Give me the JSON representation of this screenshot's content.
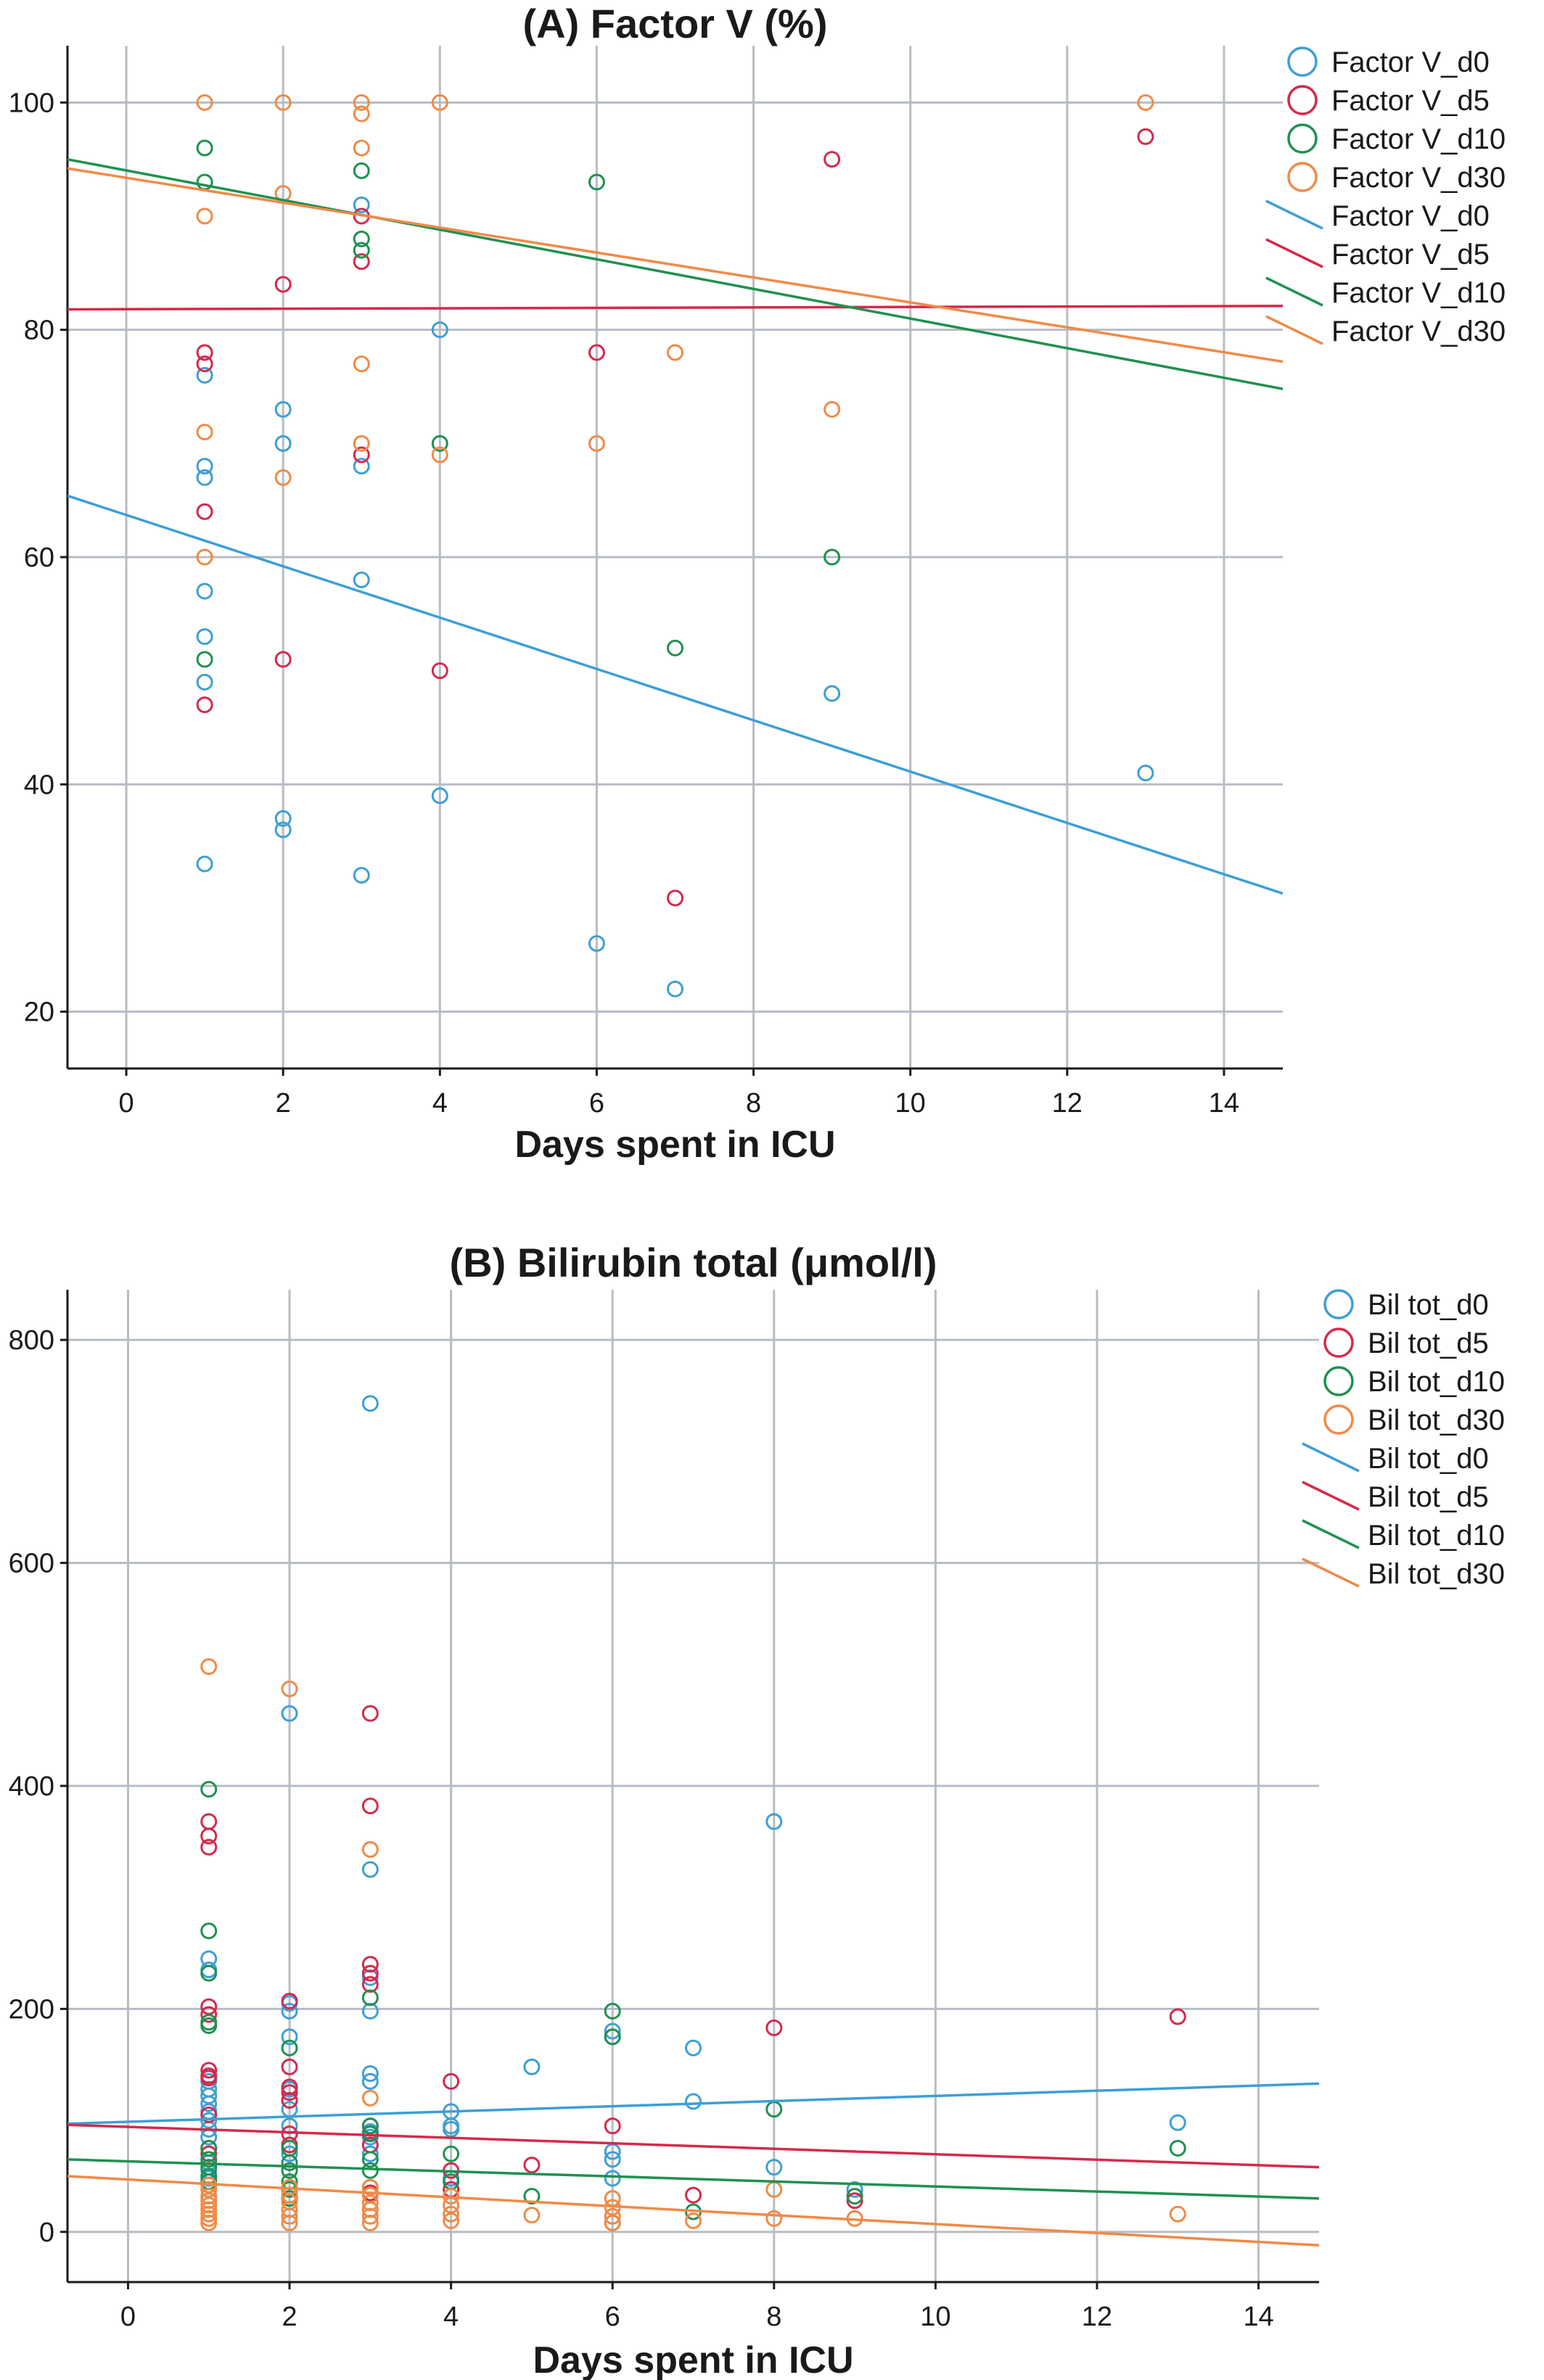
{
  "colors": {
    "d0": "#3d9fd6",
    "d5": "#d5294c",
    "d10": "#1f9150",
    "d30": "#f08a47"
  },
  "chart_data": [
    {
      "type": "scatter",
      "title": "(A) Factor V (%)",
      "xlabel": "Days spent in ICU",
      "ylabel": "",
      "xlim": [
        -0.75,
        14.75
      ],
      "ylim": [
        15,
        105
      ],
      "xticks": [
        0,
        2,
        4,
        6,
        8,
        10,
        12,
        14
      ],
      "yticks": [
        20,
        40,
        60,
        80,
        100
      ],
      "grid": true,
      "legend_position": "top-right",
      "series": [
        {
          "name": "Factor V_d0",
          "key": "d0",
          "points": [
            [
              1,
              76
            ],
            [
              1,
              68
            ],
            [
              1,
              67
            ],
            [
              1,
              57
            ],
            [
              1,
              53
            ],
            [
              1,
              49
            ],
            [
              1,
              33
            ],
            [
              2,
              73
            ],
            [
              2,
              70
            ],
            [
              2,
              37
            ],
            [
              2,
              36
            ],
            [
              3,
              91
            ],
            [
              3,
              68
            ],
            [
              3,
              58
            ],
            [
              3,
              32
            ],
            [
              4,
              80
            ],
            [
              4,
              39
            ],
            [
              6,
              26
            ],
            [
              7,
              22
            ],
            [
              9,
              48
            ],
            [
              13,
              41
            ]
          ],
          "fit": [
            [
              -0.75,
              65.4
            ],
            [
              14.75,
              30.4
            ]
          ]
        },
        {
          "name": "Factor V_d5",
          "key": "d5",
          "points": [
            [
              1,
              78
            ],
            [
              1,
              77
            ],
            [
              1,
              64
            ],
            [
              1,
              47
            ],
            [
              2,
              84
            ],
            [
              2,
              51
            ],
            [
              3,
              90
            ],
            [
              3,
              86
            ],
            [
              3,
              69
            ],
            [
              4,
              50
            ],
            [
              6,
              78
            ],
            [
              7,
              30
            ],
            [
              9,
              95
            ],
            [
              13,
              97
            ]
          ],
          "fit": [
            [
              -0.75,
              81.8
            ],
            [
              14.75,
              82.1
            ]
          ]
        },
        {
          "name": "Factor V_d10",
          "key": "d10",
          "points": [
            [
              1,
              96
            ],
            [
              1,
              93
            ],
            [
              1,
              51
            ],
            [
              3,
              94
            ],
            [
              3,
              88
            ],
            [
              3,
              87
            ],
            [
              4,
              70
            ],
            [
              6,
              93
            ],
            [
              7,
              52
            ],
            [
              9,
              60
            ]
          ],
          "fit": [
            [
              -0.75,
              95.0
            ],
            [
              14.75,
              74.8
            ]
          ]
        },
        {
          "name": "Factor V_d30",
          "key": "d30",
          "points": [
            [
              1,
              100
            ],
            [
              1,
              90
            ],
            [
              1,
              71
            ],
            [
              1,
              60
            ],
            [
              2,
              100
            ],
            [
              2,
              92
            ],
            [
              2,
              67
            ],
            [
              3,
              100
            ],
            [
              3,
              99
            ],
            [
              3,
              96
            ],
            [
              3,
              77
            ],
            [
              3,
              70
            ],
            [
              4,
              100
            ],
            [
              4,
              69
            ],
            [
              6,
              70
            ],
            [
              7,
              78
            ],
            [
              9,
              73
            ],
            [
              13,
              100
            ]
          ],
          "fit": [
            [
              -0.75,
              94.2
            ],
            [
              14.75,
              77.2
            ]
          ]
        }
      ]
    },
    {
      "type": "scatter",
      "title": "(B) Bilirubin total (μmol/l)",
      "xlabel": "Days spent in ICU",
      "ylabel": "",
      "xlim": [
        -0.75,
        14.75
      ],
      "ylim": [
        -45,
        845
      ],
      "xticks": [
        0,
        2,
        4,
        6,
        8,
        10,
        12,
        14
      ],
      "yticks": [
        0,
        200,
        400,
        600,
        800
      ],
      "grid": true,
      "legend_position": "top-right",
      "series": [
        {
          "name": "Bil tot_d0",
          "key": "d0",
          "points": [
            [
              1,
              245
            ],
            [
              1,
              235
            ],
            [
              1,
              135
            ],
            [
              1,
              128
            ],
            [
              1,
              122
            ],
            [
              1,
              115
            ],
            [
              1,
              108
            ],
            [
              1,
              100
            ],
            [
              1,
              92
            ],
            [
              1,
              85
            ],
            [
              1,
              62
            ],
            [
              1,
              55
            ],
            [
              1,
              48
            ],
            [
              2,
              465
            ],
            [
              2,
              205
            ],
            [
              2,
              198
            ],
            [
              2,
              175
            ],
            [
              2,
              128
            ],
            [
              2,
              118
            ],
            [
              2,
              110
            ],
            [
              2,
              95
            ],
            [
              2,
              70
            ],
            [
              3,
              743
            ],
            [
              3,
              325
            ],
            [
              3,
              228
            ],
            [
              3,
              198
            ],
            [
              3,
              142
            ],
            [
              3,
              135
            ],
            [
              3,
              90
            ],
            [
              3,
              85
            ],
            [
              3,
              70
            ],
            [
              4,
              108
            ],
            [
              4,
              95
            ],
            [
              4,
              92
            ],
            [
              4,
              48
            ],
            [
              5,
              148
            ],
            [
              6,
              180
            ],
            [
              6,
              175
            ],
            [
              6,
              72
            ],
            [
              6,
              65
            ],
            [
              6,
              48
            ],
            [
              7,
              165
            ],
            [
              7,
              117
            ],
            [
              8,
              368
            ],
            [
              8,
              58
            ],
            [
              9,
              38
            ],
            [
              13,
              98
            ]
          ],
          "fit": [
            [
              -0.75,
              97
            ],
            [
              14.75,
              133
            ]
          ]
        },
        {
          "name": "Bil tot_d5",
          "key": "d5",
          "points": [
            [
              1,
              368
            ],
            [
              1,
              355
            ],
            [
              1,
              345
            ],
            [
              1,
              202
            ],
            [
              1,
              195
            ],
            [
              1,
              145
            ],
            [
              1,
              140
            ],
            [
              1,
              138
            ],
            [
              1,
              105
            ],
            [
              1,
              75
            ],
            [
              1,
              70
            ],
            [
              2,
              207
            ],
            [
              2,
              148
            ],
            [
              2,
              130
            ],
            [
              2,
              125
            ],
            [
              2,
              118
            ],
            [
              2,
              88
            ],
            [
              2,
              78
            ],
            [
              3,
              465
            ],
            [
              3,
              382
            ],
            [
              3,
              240
            ],
            [
              3,
              232
            ],
            [
              3,
              222
            ],
            [
              3,
              95
            ],
            [
              3,
              88
            ],
            [
              3,
              78
            ],
            [
              3,
              35
            ],
            [
              4,
              135
            ],
            [
              4,
              55
            ],
            [
              4,
              38
            ],
            [
              5,
              60
            ],
            [
              6,
              95
            ],
            [
              7,
              33
            ],
            [
              8,
              183
            ],
            [
              9,
              28
            ],
            [
              13,
              193
            ]
          ],
          "fit": [
            [
              -0.75,
              96
            ],
            [
              14.75,
              58
            ]
          ]
        },
        {
          "name": "Bil tot_d10",
          "key": "d10",
          "points": [
            [
              1,
              397
            ],
            [
              1,
              270
            ],
            [
              1,
              232
            ],
            [
              1,
              188
            ],
            [
              1,
              185
            ],
            [
              1,
              75
            ],
            [
              1,
              65
            ],
            [
              1,
              58
            ],
            [
              1,
              50
            ],
            [
              1,
              45
            ],
            [
              2,
              165
            ],
            [
              2,
              75
            ],
            [
              2,
              62
            ],
            [
              2,
              55
            ],
            [
              2,
              45
            ],
            [
              2,
              38
            ],
            [
              2,
              30
            ],
            [
              3,
              210
            ],
            [
              3,
              95
            ],
            [
              3,
              88
            ],
            [
              3,
              65
            ],
            [
              3,
              55
            ],
            [
              3,
              40
            ],
            [
              3,
              20
            ],
            [
              4,
              70
            ],
            [
              4,
              45
            ],
            [
              5,
              32
            ],
            [
              6,
              198
            ],
            [
              6,
              175
            ],
            [
              6,
              8
            ],
            [
              7,
              18
            ],
            [
              8,
              110
            ],
            [
              9,
              32
            ],
            [
              13,
              75
            ]
          ],
          "fit": [
            [
              -0.75,
              65
            ],
            [
              14.75,
              30
            ]
          ]
        },
        {
          "name": "Bil tot_d30",
          "key": "d30",
          "points": [
            [
              1,
              507
            ],
            [
              1,
              42
            ],
            [
              1,
              38
            ],
            [
              1,
              32
            ],
            [
              1,
              28
            ],
            [
              1,
              24
            ],
            [
              1,
              20
            ],
            [
              1,
              16
            ],
            [
              1,
              12
            ],
            [
              1,
              8
            ],
            [
              2,
              487
            ],
            [
              2,
              40
            ],
            [
              2,
              33
            ],
            [
              2,
              27
            ],
            [
              2,
              20
            ],
            [
              2,
              14
            ],
            [
              2,
              8
            ],
            [
              3,
              343
            ],
            [
              3,
              120
            ],
            [
              3,
              40
            ],
            [
              3,
              33
            ],
            [
              3,
              26
            ],
            [
              3,
              20
            ],
            [
              3,
              14
            ],
            [
              3,
              8
            ],
            [
              4,
              32
            ],
            [
              4,
              24
            ],
            [
              4,
              16
            ],
            [
              4,
              10
            ],
            [
              5,
              15
            ],
            [
              6,
              30
            ],
            [
              6,
              22
            ],
            [
              6,
              14
            ],
            [
              6,
              8
            ],
            [
              7,
              10
            ],
            [
              8,
              38
            ],
            [
              8,
              12
            ],
            [
              9,
              12
            ],
            [
              13,
              16
            ]
          ],
          "fit": [
            [
              -0.75,
              50
            ],
            [
              14.75,
              -12
            ]
          ]
        }
      ]
    }
  ]
}
